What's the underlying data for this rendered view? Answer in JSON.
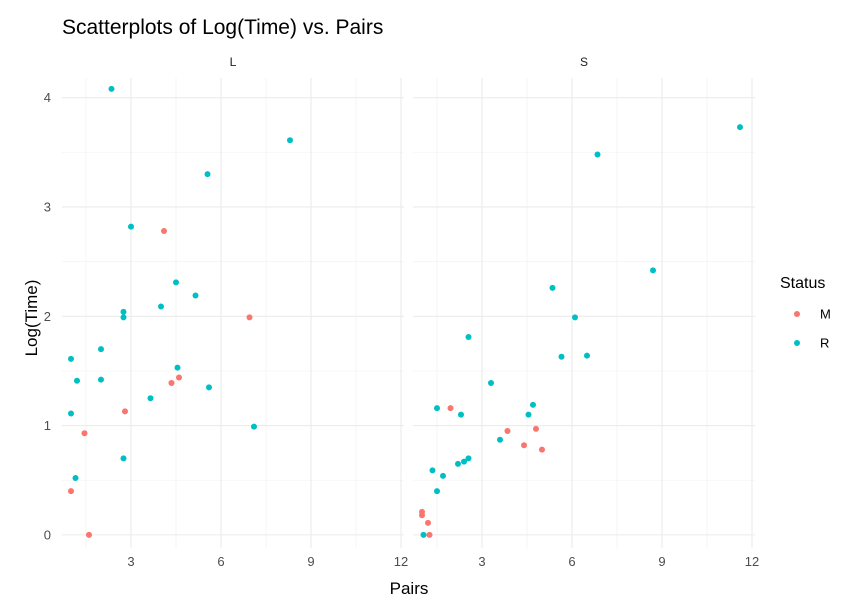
{
  "chart_data": {
    "type": "scatter",
    "title": "Scatterplots of Log(Time) vs. Pairs",
    "xlabel": "Pairs",
    "ylabel": "Log(Time)",
    "xlim": [
      0.7,
      12.1
    ],
    "ylim": [
      -0.12,
      4.18
    ],
    "x_ticks": [
      3,
      6,
      9,
      12
    ],
    "y_ticks": [
      0,
      1,
      2,
      3,
      4
    ],
    "grid": true,
    "legend": {
      "title": "Status",
      "placement": "right",
      "items": [
        {
          "label": "M",
          "color": "#F8766D"
        },
        {
          "label": "R",
          "color": "#00BFC4"
        }
      ]
    },
    "panels": [
      {
        "label": "L",
        "series": [
          {
            "name": "M",
            "color": "#F8766D",
            "points": [
              [
                1.0,
                0.4
              ],
              [
                1.45,
                0.93
              ],
              [
                1.6,
                0.0
              ],
              [
                2.8,
                1.13
              ],
              [
                4.1,
                2.78
              ],
              [
                4.35,
                1.39
              ],
              [
                4.6,
                1.44
              ],
              [
                6.95,
                1.99
              ]
            ]
          },
          {
            "name": "R",
            "color": "#00BFC4",
            "points": [
              [
                1.0,
                1.61
              ],
              [
                1.0,
                1.11
              ],
              [
                1.15,
                0.52
              ],
              [
                1.2,
                1.41
              ],
              [
                2.0,
                1.7
              ],
              [
                2.0,
                1.42
              ],
              [
                2.35,
                4.08
              ],
              [
                2.75,
                2.04
              ],
              [
                2.75,
                1.99
              ],
              [
                2.75,
                0.7
              ],
              [
                3.0,
                2.82
              ],
              [
                3.65,
                1.25
              ],
              [
                4.0,
                2.09
              ],
              [
                4.5,
                2.31
              ],
              [
                4.55,
                1.53
              ],
              [
                5.15,
                2.19
              ],
              [
                5.55,
                3.3
              ],
              [
                5.6,
                1.35
              ],
              [
                7.1,
                0.99
              ],
              [
                8.3,
                3.61
              ]
            ]
          }
        ]
      },
      {
        "label": "S",
        "series": [
          {
            "name": "M",
            "color": "#F8766D",
            "points": [
              [
                1.0,
                0.18
              ],
              [
                1.0,
                0.21
              ],
              [
                1.2,
                0.11
              ],
              [
                1.25,
                0.0
              ],
              [
                1.95,
                1.16
              ],
              [
                3.85,
                0.95
              ],
              [
                4.4,
                0.82
              ],
              [
                4.8,
                0.97
              ],
              [
                5.0,
                0.78
              ]
            ]
          },
          {
            "name": "R",
            "color": "#00BFC4",
            "points": [
              [
                1.05,
                0.0
              ],
              [
                1.35,
                0.59
              ],
              [
                1.5,
                0.4
              ],
              [
                1.5,
                1.16
              ],
              [
                1.7,
                0.54
              ],
              [
                2.2,
                0.65
              ],
              [
                2.3,
                1.1
              ],
              [
                2.4,
                0.67
              ],
              [
                2.55,
                0.7
              ],
              [
                2.55,
                1.81
              ],
              [
                3.3,
                1.39
              ],
              [
                3.6,
                0.87
              ],
              [
                4.55,
                1.1
              ],
              [
                4.7,
                1.19
              ],
              [
                5.35,
                2.26
              ],
              [
                5.65,
                1.63
              ],
              [
                6.1,
                1.99
              ],
              [
                6.5,
                1.64
              ],
              [
                6.85,
                3.48
              ],
              [
                8.7,
                2.42
              ],
              [
                11.6,
                3.73
              ]
            ]
          }
        ]
      }
    ]
  }
}
